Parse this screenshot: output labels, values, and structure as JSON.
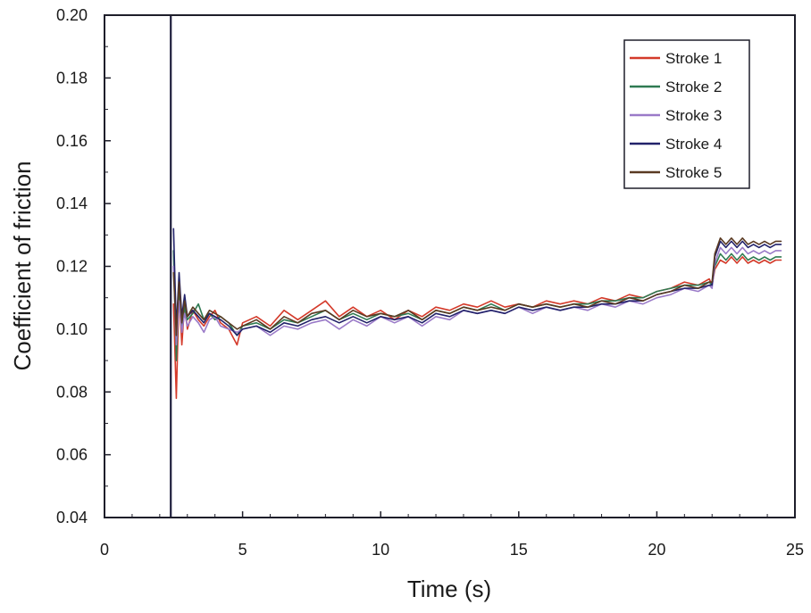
{
  "chart_data": {
    "type": "line",
    "title": "",
    "xlabel": "Time (s)",
    "ylabel": "Coefficient of friction",
    "xlim": [
      0,
      25
    ],
    "ylim": [
      0.04,
      0.2
    ],
    "xticks": [
      0,
      5,
      10,
      15,
      20,
      25
    ],
    "yticks": [
      0.04,
      0.06,
      0.08,
      0.1,
      0.12,
      0.14,
      0.16,
      0.18,
      0.2
    ],
    "xtick_labels": [
      "0",
      "5",
      "10",
      "15",
      "20",
      "25"
    ],
    "ytick_labels": [
      "0.04",
      "0.06",
      "0.08",
      "0.10",
      "0.12",
      "0.14",
      "0.16",
      "0.18",
      "0.20"
    ],
    "grid": false,
    "legend_position": "top-right",
    "vertical_line": {
      "x": 2.4,
      "color": "#1e1e3c"
    },
    "series": [
      {
        "name": "Stroke 1",
        "color": "#d43a2a",
        "x": [
          2.5,
          2.6,
          2.7,
          2.8,
          2.9,
          3.0,
          3.2,
          3.4,
          3.6,
          3.8,
          4.0,
          4.2,
          4.5,
          4.8,
          5.0,
          5.5,
          6.0,
          6.5,
          7.0,
          7.5,
          8.0,
          8.5,
          9.0,
          9.5,
          10.0,
          10.5,
          11.0,
          11.5,
          12.0,
          12.5,
          13.0,
          13.5,
          14.0,
          14.5,
          15.0,
          15.5,
          16.0,
          16.5,
          17.0,
          17.5,
          18.0,
          18.5,
          19.0,
          19.5,
          20.0,
          20.5,
          21.0,
          21.5,
          21.9,
          22.0,
          22.1,
          22.3,
          22.5,
          22.7,
          22.9,
          23.1,
          23.3,
          23.5,
          23.7,
          23.9,
          24.1,
          24.3,
          24.5
        ],
        "values": [
          0.108,
          0.078,
          0.112,
          0.095,
          0.108,
          0.1,
          0.106,
          0.103,
          0.101,
          0.104,
          0.106,
          0.102,
          0.1,
          0.095,
          0.102,
          0.104,
          0.101,
          0.106,
          0.103,
          0.106,
          0.109,
          0.104,
          0.107,
          0.104,
          0.106,
          0.103,
          0.106,
          0.104,
          0.107,
          0.106,
          0.108,
          0.107,
          0.109,
          0.107,
          0.108,
          0.107,
          0.109,
          0.108,
          0.109,
          0.108,
          0.11,
          0.109,
          0.111,
          0.11,
          0.112,
          0.113,
          0.115,
          0.114,
          0.116,
          0.114,
          0.119,
          0.122,
          0.121,
          0.123,
          0.121,
          0.123,
          0.121,
          0.122,
          0.121,
          0.122,
          0.121,
          0.122,
          0.122
        ]
      },
      {
        "name": "Stroke 2",
        "color": "#2f7a52",
        "x": [
          2.5,
          2.6,
          2.7,
          2.8,
          2.9,
          3.0,
          3.2,
          3.4,
          3.6,
          3.8,
          4.0,
          4.2,
          4.5,
          4.8,
          5.0,
          5.5,
          6.0,
          6.5,
          7.0,
          7.5,
          8.0,
          8.5,
          9.0,
          9.5,
          10.0,
          10.5,
          11.0,
          11.5,
          12.0,
          12.5,
          13.0,
          13.5,
          14.0,
          14.5,
          15.0,
          15.5,
          16.0,
          16.5,
          17.0,
          17.5,
          18.0,
          18.5,
          19.0,
          19.5,
          20.0,
          20.5,
          21.0,
          21.5,
          21.9,
          22.0,
          22.1,
          22.3,
          22.5,
          22.7,
          22.9,
          23.1,
          23.3,
          23.5,
          23.7,
          23.9,
          24.1,
          24.3,
          24.5
        ],
        "values": [
          0.125,
          0.09,
          0.113,
          0.1,
          0.107,
          0.103,
          0.105,
          0.108,
          0.103,
          0.105,
          0.103,
          0.104,
          0.102,
          0.098,
          0.101,
          0.102,
          0.1,
          0.103,
          0.102,
          0.104,
          0.106,
          0.103,
          0.105,
          0.103,
          0.105,
          0.104,
          0.105,
          0.103,
          0.106,
          0.105,
          0.107,
          0.106,
          0.108,
          0.106,
          0.108,
          0.107,
          0.108,
          0.107,
          0.108,
          0.108,
          0.109,
          0.109,
          0.11,
          0.11,
          0.112,
          0.113,
          0.114,
          0.114,
          0.115,
          0.114,
          0.12,
          0.124,
          0.122,
          0.124,
          0.122,
          0.124,
          0.122,
          0.123,
          0.122,
          0.123,
          0.122,
          0.123,
          0.123
        ]
      },
      {
        "name": "Stroke 3",
        "color": "#9a7ac8",
        "x": [
          2.5,
          2.6,
          2.7,
          2.8,
          2.9,
          3.0,
          3.2,
          3.4,
          3.6,
          3.8,
          4.0,
          4.2,
          4.5,
          4.8,
          5.0,
          5.5,
          6.0,
          6.5,
          7.0,
          7.5,
          8.0,
          8.5,
          9.0,
          9.5,
          10.0,
          10.5,
          11.0,
          11.5,
          12.0,
          12.5,
          13.0,
          13.5,
          14.0,
          14.5,
          15.0,
          15.5,
          16.0,
          16.5,
          17.0,
          17.5,
          18.0,
          18.5,
          19.0,
          19.5,
          20.0,
          20.5,
          21.0,
          21.5,
          21.9,
          22.0,
          22.1,
          22.3,
          22.5,
          22.7,
          22.9,
          23.1,
          23.3,
          23.5,
          23.7,
          23.9,
          24.1,
          24.3,
          24.5
        ],
        "values": [
          0.12,
          0.095,
          0.109,
          0.099,
          0.105,
          0.101,
          0.104,
          0.102,
          0.099,
          0.103,
          0.104,
          0.101,
          0.1,
          0.099,
          0.1,
          0.101,
          0.098,
          0.101,
          0.1,
          0.102,
          0.103,
          0.1,
          0.103,
          0.101,
          0.104,
          0.102,
          0.104,
          0.101,
          0.104,
          0.103,
          0.106,
          0.105,
          0.106,
          0.105,
          0.107,
          0.105,
          0.107,
          0.106,
          0.107,
          0.106,
          0.108,
          0.107,
          0.109,
          0.108,
          0.11,
          0.111,
          0.113,
          0.112,
          0.114,
          0.113,
          0.121,
          0.126,
          0.124,
          0.126,
          0.124,
          0.126,
          0.124,
          0.125,
          0.124,
          0.125,
          0.124,
          0.125,
          0.125
        ]
      },
      {
        "name": "Stroke 4",
        "color": "#22226a",
        "x": [
          2.5,
          2.6,
          2.7,
          2.8,
          2.9,
          3.0,
          3.2,
          3.4,
          3.6,
          3.8,
          4.0,
          4.2,
          4.5,
          4.8,
          5.0,
          5.5,
          6.0,
          6.5,
          7.0,
          7.5,
          8.0,
          8.5,
          9.0,
          9.5,
          10.0,
          10.5,
          11.0,
          11.5,
          12.0,
          12.5,
          13.0,
          13.5,
          14.0,
          14.5,
          15.0,
          15.5,
          16.0,
          16.5,
          17.0,
          17.5,
          18.0,
          18.5,
          19.0,
          19.5,
          20.0,
          20.5,
          21.0,
          21.5,
          21.9,
          22.0,
          22.1,
          22.3,
          22.5,
          22.7,
          22.9,
          23.1,
          23.3,
          23.5,
          23.7,
          23.9,
          24.1,
          24.3,
          24.5
        ],
        "values": [
          0.132,
          0.1,
          0.118,
          0.104,
          0.111,
          0.104,
          0.106,
          0.104,
          0.102,
          0.105,
          0.104,
          0.103,
          0.101,
          0.098,
          0.1,
          0.101,
          0.099,
          0.102,
          0.101,
          0.103,
          0.104,
          0.102,
          0.104,
          0.102,
          0.104,
          0.103,
          0.104,
          0.102,
          0.105,
          0.104,
          0.106,
          0.105,
          0.106,
          0.105,
          0.107,
          0.106,
          0.107,
          0.106,
          0.107,
          0.107,
          0.108,
          0.108,
          0.109,
          0.109,
          0.111,
          0.112,
          0.113,
          0.113,
          0.114,
          0.114,
          0.123,
          0.128,
          0.126,
          0.128,
          0.126,
          0.128,
          0.126,
          0.127,
          0.126,
          0.127,
          0.126,
          0.127,
          0.127
        ]
      },
      {
        "name": "Stroke 5",
        "color": "#5a3a22",
        "x": [
          2.5,
          2.6,
          2.7,
          2.8,
          2.9,
          3.0,
          3.2,
          3.4,
          3.6,
          3.8,
          4.0,
          4.2,
          4.5,
          4.8,
          5.0,
          5.5,
          6.0,
          6.5,
          7.0,
          7.5,
          8.0,
          8.5,
          9.0,
          9.5,
          10.0,
          10.5,
          11.0,
          11.5,
          12.0,
          12.5,
          13.0,
          13.5,
          14.0,
          14.5,
          15.0,
          15.5,
          16.0,
          16.5,
          17.0,
          17.5,
          18.0,
          18.5,
          19.0,
          19.5,
          20.0,
          20.5,
          21.0,
          21.5,
          21.9,
          22.0,
          22.1,
          22.3,
          22.5,
          22.7,
          22.9,
          23.1,
          23.3,
          23.5,
          23.7,
          23.9,
          24.1,
          24.3,
          24.5
        ],
        "values": [
          0.118,
          0.098,
          0.115,
          0.102,
          0.109,
          0.104,
          0.107,
          0.105,
          0.103,
          0.106,
          0.105,
          0.104,
          0.102,
          0.1,
          0.101,
          0.103,
          0.1,
          0.104,
          0.102,
          0.105,
          0.106,
          0.103,
          0.106,
          0.104,
          0.105,
          0.104,
          0.106,
          0.103,
          0.106,
          0.105,
          0.107,
          0.106,
          0.107,
          0.106,
          0.108,
          0.107,
          0.108,
          0.107,
          0.108,
          0.107,
          0.109,
          0.108,
          0.11,
          0.109,
          0.111,
          0.112,
          0.114,
          0.113,
          0.115,
          0.115,
          0.124,
          0.129,
          0.127,
          0.129,
          0.127,
          0.129,
          0.127,
          0.128,
          0.127,
          0.128,
          0.127,
          0.128,
          0.128
        ]
      }
    ]
  }
}
